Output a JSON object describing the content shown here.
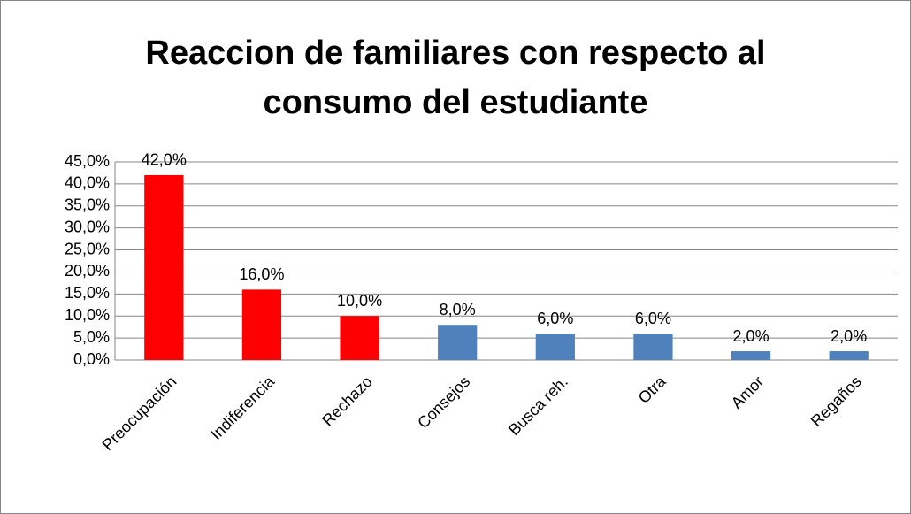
{
  "chart_data": {
    "type": "bar",
    "title": [
      "Reaccion de familiares con respecto al",
      "consumo del estudiante"
    ],
    "categories": [
      "Preocupación",
      "Indiferencia",
      "Rechazo",
      "Consejos",
      "Busca reh.",
      "Otra",
      "Amor",
      "Regaños"
    ],
    "values": [
      42,
      16,
      10,
      8,
      6,
      6,
      2,
      2
    ],
    "value_labels": [
      "42,0%",
      "16,0%",
      "10,0%",
      "8,0%",
      "6,0%",
      "6,0%",
      "2,0%",
      "2,0%"
    ],
    "colors": [
      "#ff0000",
      "#ff0000",
      "#ff0000",
      "#4f81bd",
      "#4f81bd",
      "#4f81bd",
      "#4f81bd",
      "#4f81bd"
    ],
    "ylim": [
      0,
      45
    ],
    "yticks": [
      {
        "value": 0,
        "label": "0,0%"
      },
      {
        "value": 5,
        "label": "5,0%"
      },
      {
        "value": 10,
        "label": "10,0%"
      },
      {
        "value": 15,
        "label": "15,0%"
      },
      {
        "value": 20,
        "label": "20,0%"
      },
      {
        "value": 25,
        "label": "25,0%"
      },
      {
        "value": 30,
        "label": "30,0%"
      },
      {
        "value": 35,
        "label": "35,0%"
      },
      {
        "value": 40,
        "label": "40,0%"
      },
      {
        "value": 45,
        "label": "45,0%"
      }
    ],
    "grid": true
  }
}
